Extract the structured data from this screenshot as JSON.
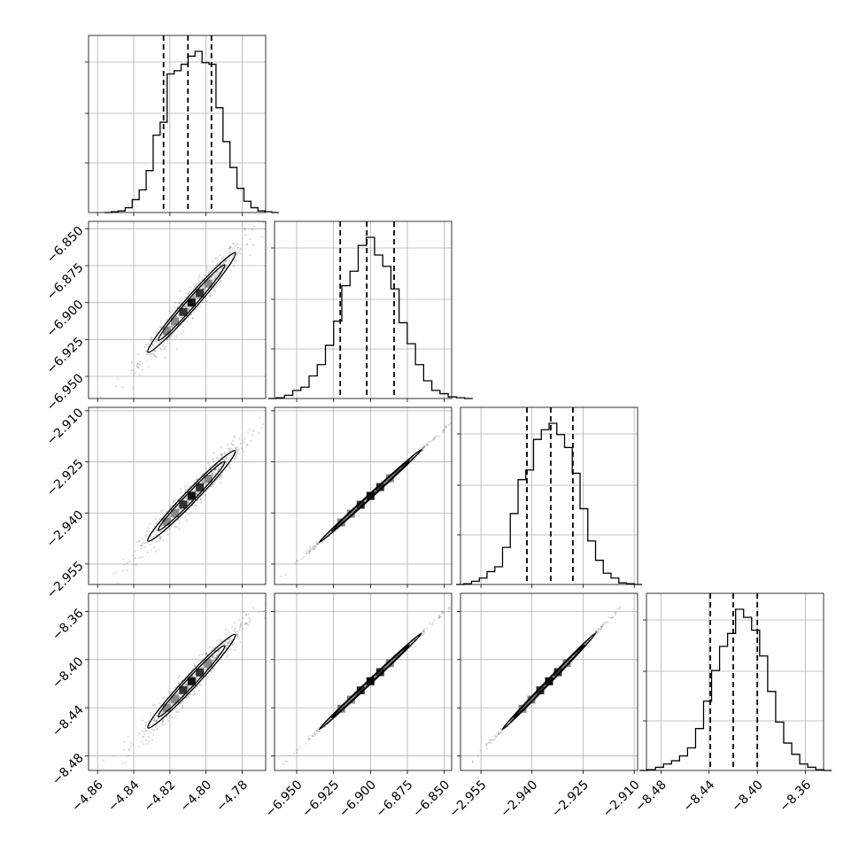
{
  "chart_data": {
    "type": "corner",
    "title": "",
    "parameters": [
      {
        "name": "",
        "center": -4.808,
        "sigma": 0.0115,
        "quantiles": [
          -4.8235,
          -4.81,
          -4.797
        ],
        "range": [
          -4.865,
          -4.767
        ],
        "ticks": [
          {
            "value": -4.86,
            "label": "−4.86"
          },
          {
            "value": -4.84,
            "label": "−4.84"
          },
          {
            "value": -4.82,
            "label": "−4.82"
          },
          {
            "value": -4.8,
            "label": "−4.80"
          },
          {
            "value": -4.78,
            "label": "−4.78"
          }
        ],
        "histogram": [
          0.0,
          0.005,
          0.01,
          0.03,
          0.08,
          0.14,
          0.26,
          0.48,
          0.56,
          0.86,
          0.88,
          0.92,
          0.97,
          1.0,
          0.93,
          0.92,
          0.65,
          0.44,
          0.28,
          0.15,
          0.07,
          0.03,
          0.01,
          0.005,
          0.0
        ]
      },
      {
        "name": "",
        "center": -6.9,
        "sigma": 0.0165,
        "quantiles": [
          -6.9205,
          -6.9025,
          -6.884
        ],
        "range": [
          -6.965,
          -6.845
        ],
        "ticks": [
          {
            "value": -6.95,
            "label": "−6.950"
          },
          {
            "value": -6.925,
            "label": "−6.925"
          },
          {
            "value": -6.9,
            "label": "−6.900"
          },
          {
            "value": -6.875,
            "label": "−6.875"
          },
          {
            "value": -6.85,
            "label": "−6.850"
          }
        ],
        "histogram": [
          0.0,
          0.005,
          0.02,
          0.05,
          0.07,
          0.14,
          0.21,
          0.33,
          0.48,
          0.7,
          0.79,
          0.95,
          1.0,
          0.89,
          0.82,
          0.68,
          0.47,
          0.34,
          0.21,
          0.11,
          0.05,
          0.03,
          0.01,
          0.005,
          0.0
        ]
      },
      {
        "name": "",
        "center": -2.935,
        "sigma": 0.0065,
        "quantiles": [
          -2.9415,
          -2.9345,
          -2.928
        ],
        "range": [
          -2.961,
          -2.909
        ],
        "ticks": [
          {
            "value": -2.955,
            "label": "−2.955"
          },
          {
            "value": -2.94,
            "label": "−2.940"
          },
          {
            "value": -2.925,
            "label": "−2.925"
          },
          {
            "value": -2.91,
            "label": "−2.910"
          }
        ],
        "histogram": [
          0.0,
          0.005,
          0.02,
          0.04,
          0.08,
          0.11,
          0.23,
          0.44,
          0.65,
          0.71,
          0.9,
          0.96,
          1.0,
          0.93,
          0.85,
          0.69,
          0.47,
          0.27,
          0.15,
          0.07,
          0.04,
          0.01,
          0.005,
          0.0
        ]
      },
      {
        "name": "",
        "center": -8.418,
        "sigma": 0.019,
        "quantiles": [
          -8.439,
          -8.42,
          -8.4
        ],
        "range": [
          -8.492,
          -8.345
        ],
        "ticks": [
          {
            "value": -8.48,
            "label": "−8.48"
          },
          {
            "value": -8.44,
            "label": "−8.44"
          },
          {
            "value": -8.4,
            "label": "−8.40"
          },
          {
            "value": -8.36,
            "label": "−8.36"
          }
        ],
        "histogram": [
          0.0,
          0.005,
          0.02,
          0.04,
          0.06,
          0.09,
          0.14,
          0.26,
          0.43,
          0.62,
          0.77,
          0.85,
          1.0,
          0.95,
          0.87,
          0.71,
          0.49,
          0.3,
          0.17,
          0.1,
          0.04,
          0.02,
          0.005,
          0.0
        ]
      }
    ],
    "pairwise": [
      {
        "x": 0,
        "y": 1,
        "correlation": 0.97
      },
      {
        "x": 0,
        "y": 2,
        "correlation": 0.97
      },
      {
        "x": 0,
        "y": 3,
        "correlation": 0.97
      },
      {
        "x": 1,
        "y": 2,
        "correlation": 0.999
      },
      {
        "x": 1,
        "y": 3,
        "correlation": 0.999
      },
      {
        "x": 2,
        "y": 3,
        "correlation": 0.999
      }
    ],
    "grid": true,
    "colors": {
      "line": "#000000",
      "grid": "#b0b0b0",
      "points": "#555555"
    }
  }
}
